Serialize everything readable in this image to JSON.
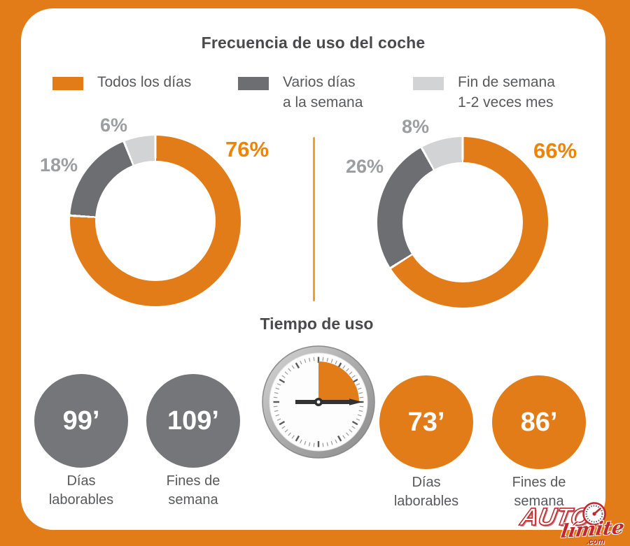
{
  "colors": {
    "frame_orange": "#E17C18",
    "orange_bright_label": "#F08300",
    "dark_gray_slice": "#6D6E71",
    "light_gray_slice": "#D1D3D4",
    "stat_circle_gray": "#757679",
    "title_text": "#4A4A4C",
    "body_text_gray": "#58595B",
    "pct_label_gray": "#9C9EA0",
    "divider_amber": "#F0A125",
    "logo_red": "#C1272D",
    "panel_white": "#FFFFFF"
  },
  "chart_data": [
    {
      "type": "pie",
      "subtype": "donut",
      "title": "Frecuencia de uso del coche",
      "legend_position": "top",
      "categories": [
        "Todos los días",
        "Varios días a la semana",
        "Fin de semana 1-2 veces mes"
      ],
      "slice_colors": [
        "#E17C18",
        "#6D6E71",
        "#D1D3D4"
      ],
      "start_angle_deg": 0,
      "direction": "clockwise",
      "legend_display": [
        {
          "line1": "Todos los días",
          "line2": ""
        },
        {
          "line1": "Varios días",
          "line2": "a la semana"
        },
        {
          "line1": "Fin de semana",
          "line2": "1-2 veces mes"
        }
      ],
      "donuts": [
        {
          "values": [
            76,
            18,
            6
          ],
          "value_labels": [
            "76%",
            "18%",
            "6%"
          ]
        },
        {
          "values": [
            66,
            26,
            8
          ],
          "value_labels": [
            "66%",
            "26%",
            "8%"
          ]
        }
      ]
    },
    {
      "type": "icon-stat",
      "title": "Tiempo de uso",
      "unit": "minutes",
      "icon": "stopwatch-quarter-hour",
      "items": [
        {
          "value": 99,
          "display": "99’",
          "label_line1": "Días",
          "label_line2": "laborables",
          "color": "#757679"
        },
        {
          "value": 109,
          "display": "109’",
          "label_line1": "Fines de",
          "label_line2": "semana",
          "color": "#757679"
        },
        {
          "value": 73,
          "display": "73’",
          "label_line1": "Días",
          "label_line2": "laborables",
          "color": "#E17C18"
        },
        {
          "value": 86,
          "display": "86’",
          "label_line1": "Fines de",
          "label_line2": "semana",
          "color": "#E17C18"
        }
      ]
    }
  ],
  "watermark": {
    "brand": "AUTO",
    "script": "límite",
    "tld": ".com"
  }
}
